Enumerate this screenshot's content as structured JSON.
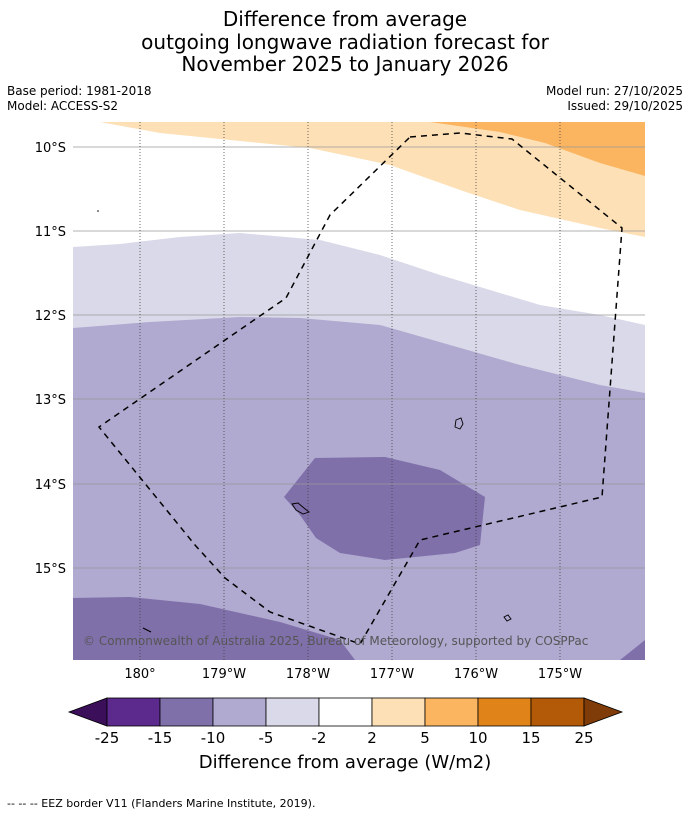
{
  "title": {
    "line1": "Difference from average",
    "line2": "outgoing longwave radiation forecast for",
    "line3": "November 2025 to January 2026"
  },
  "meta": {
    "base_period": "Base period: 1981-2018",
    "model": "Model: ACCESS-S2",
    "model_run": "Model run: 27/10/2025",
    "issued": "Issued: 29/10/2025"
  },
  "map": {
    "lat_labels": [
      "10°S",
      "11°S",
      "12°S",
      "13°S",
      "14°S",
      "15°S"
    ],
    "lon_labels": [
      "180°",
      "179°W",
      "178°W",
      "177°W",
      "176°W",
      "175°W"
    ],
    "copyright": "© Commonwealth of Australia 2025, Bureau of Meteorology, supported by COSPPac"
  },
  "colorbar": {
    "labels": [
      "-25",
      "-15",
      "-10",
      "-5",
      "-2",
      "2",
      "5",
      "10",
      "15",
      "25"
    ],
    "colors": [
      "#3b0f5a",
      "#5b2a8c",
      "#8070aa",
      "#b0a9d0",
      "#d9d9e9",
      "#ffffff",
      "#fde0b6",
      "#fbb560",
      "#e08419",
      "#b35a08",
      "#7f3b08"
    ],
    "title": "Difference from average (W/m2)"
  },
  "footnote": "--  --  -- EEZ border V11 (Flanders Marine Institute, 2019)."
}
